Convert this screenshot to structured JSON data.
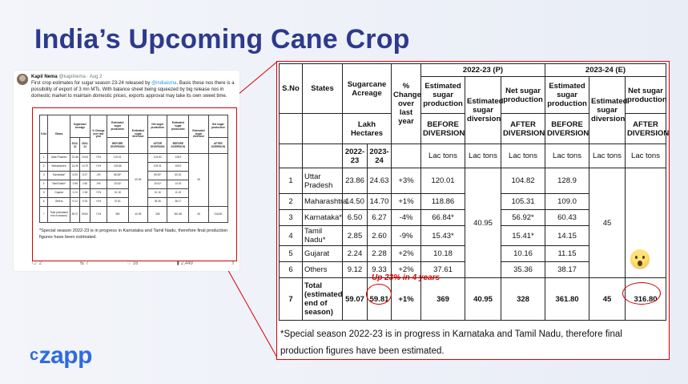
{
  "slide": {
    "title": "India’s Upcoming Cane Crop",
    "logo_mark": "c",
    "logo_text": "zapp"
  },
  "tweet": {
    "name": "Kapil Nema",
    "handle": "@kapilnema",
    "date": "Aug 2",
    "text_1": "First crop estimates for sugar season 23-24 released by ",
    "mention": "@indiaisma",
    "text_2": ". Basis these nos there is a possibility of export of 3 mn MTs. With balance sheet being squeezed by big release nos in domestic market to maintain domestic prices, exports approval may take its own sweet time.",
    "replies": "2",
    "retweets": "7",
    "likes": "16",
    "views": "2,449"
  },
  "table": {
    "headers": {
      "sno": "S.No",
      "states": "States",
      "acreage": "Sugarcane Acreage",
      "change": "% Change over last year",
      "season_p": "2022-23 (P)",
      "season_e": "2023-24 (E)",
      "est_prod": "Estimated sugar production",
      "est_div": "Estimated sugar diversion",
      "net_prod": "Net sugar production",
      "before": "BEFORE DIVERSION",
      "after": "AFTER DIVERSION",
      "lakh": "Lakh Hectares",
      "y1": "2022-23",
      "y2": "2023-24",
      "unit": "Lac tons"
    },
    "rows": [
      {
        "sno": "1",
        "state": "Uttar Pradesh",
        "a22": "23.86",
        "a23": "24.63",
        "chg": "+3%",
        "p_est": "120.01",
        "p_net": "104.82",
        "e_est": "128.9",
        "e_net": ""
      },
      {
        "sno": "2",
        "state": "Maharashtra",
        "a22": "14.50",
        "a23": "14.70",
        "chg": "+1%",
        "p_est": "118.86",
        "p_net": "105.31",
        "e_est": "109.0",
        "e_net": ""
      },
      {
        "sno": "3",
        "state": "Karnataka*",
        "a22": "6.50",
        "a23": "6.27",
        "chg": "-4%",
        "p_est": "66.84*",
        "p_net": "56.92*",
        "e_est": "60.43",
        "e_net": ""
      },
      {
        "sno": "4",
        "state": "Tamil Nadu*",
        "a22": "2.85",
        "a23": "2.60",
        "chg": "-9%",
        "p_est": "15.43*",
        "p_net": "15.41*",
        "e_est": "14.15",
        "e_net": ""
      },
      {
        "sno": "5",
        "state": "Gujarat",
        "a22": "2.24",
        "a23": "2.28",
        "chg": "+2%",
        "p_est": "10.18",
        "p_net": "10.16",
        "e_est": "11.15",
        "e_net": ""
      },
      {
        "sno": "6",
        "state": "Others",
        "a22": "9.12",
        "a23": "9.33",
        "chg": "+2%",
        "p_est": "37.61",
        "p_net": "35.36",
        "e_est": "38.17",
        "e_net": ""
      }
    ],
    "merged": {
      "p_div": "40.95",
      "e_div": "45"
    },
    "total": {
      "sno": "7",
      "state": "Total (estimated end of season)",
      "a22": "59.07",
      "a23": "59.81",
      "chg": "+1%",
      "p_est": "369",
      "p_div": "40.95",
      "p_net": "328",
      "e_est": "361.80",
      "e_div": "45",
      "e_net": "316.80"
    },
    "annotation": "Up 23% in 4 years",
    "footnote": "*Special season 2022-23 is in progress in Karnataka and Tamil Nadu, therefore final production figures have been estimated."
  },
  "mini_table": {
    "headers": [
      "S.No",
      "States",
      "Sugarcane Acreage",
      "% Change over last year",
      "Estimated sugar production",
      "Estimated sugar diversion",
      "Net sugar production",
      "Estimated sugar production",
      "Estimated sugar diversion",
      "Net sugar production"
    ],
    "rows": [
      [
        "1",
        "Uttar Pradesh",
        "23.86",
        "24.63",
        "+3%",
        "120.01",
        "104.82",
        "128.9"
      ],
      [
        "2",
        "Maharashtra",
        "14.50",
        "14.70",
        "+1%",
        "118.86",
        "105.31",
        "109.0"
      ],
      [
        "3",
        "Karnataka*",
        "6.50",
        "6.27",
        "-4%",
        "66.84*",
        "56.92*",
        "60.43"
      ],
      [
        "4",
        "Tamil Nadu*",
        "2.85",
        "2.60",
        "-9%",
        "15.43*",
        "15.41*",
        "14.15"
      ],
      [
        "5",
        "Gujarat",
        "2.24",
        "2.28",
        "+2%",
        "10.18",
        "10.16",
        "11.15"
      ],
      [
        "6",
        "Others",
        "9.12",
        "9.33",
        "+2%",
        "37.61",
        "35.36",
        "38.17"
      ]
    ],
    "total": [
      "7",
      "Total (estimated end of season)",
      "59.07",
      "59.81",
      "+1%",
      "369",
      "40.95",
      "328",
      "361.80",
      "45",
      "316.80"
    ]
  },
  "colors": {
    "title": "#2d3a8c",
    "accent_red": "#d40000",
    "logo": "#2f6be0"
  }
}
